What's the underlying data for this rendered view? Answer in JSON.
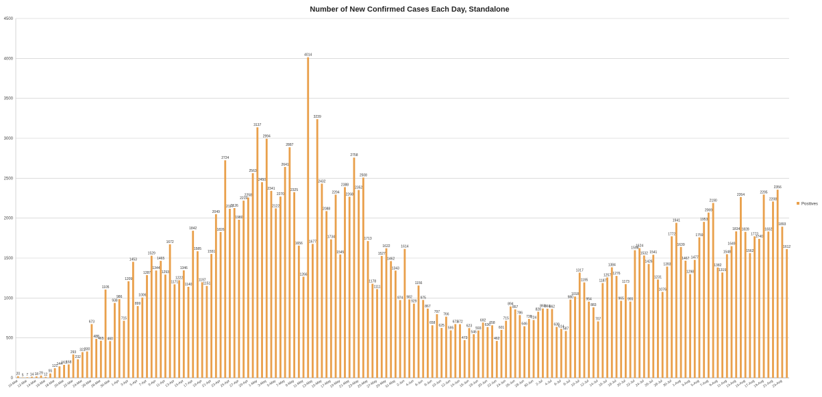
{
  "chart_data": {
    "type": "bar",
    "title": "Number of New Confirmed Cases Each Day, Standalone",
    "xlabel": "",
    "ylabel": "",
    "ylim": [
      0,
      4500
    ],
    "yticks": [
      0,
      500,
      1000,
      1500,
      2000,
      2500,
      3000,
      3500,
      4000,
      4500
    ],
    "grid": true,
    "legend_position": "right",
    "bar_color": "#E9A04C",
    "series": [
      {
        "name": "Positives",
        "values": [
          20,
          5,
          7,
          14,
          18,
          29,
          12,
          55,
          121,
          144,
          163,
          168,
          293,
          232,
          322,
          330,
          673,
          488,
          465,
          1105,
          460,
          938,
          986,
          715,
          1209,
          1453,
          899,
          1006,
          1287,
          1529,
          1344,
          1465,
          1293,
          1672,
          1171,
          1222,
          1346,
          1140,
          1842,
          1585,
          1197,
          1151,
          1551,
          2049,
          1826,
          2724,
          2117,
          2126,
          1980,
          2219,
          2258,
          2563,
          3137,
          2450,
          2994,
          2341,
          2122,
          2270,
          2641,
          2887,
          2325,
          1656,
          1266,
          4014,
          1677,
          3239,
          2432,
          2088,
          1734,
          2294,
          1545,
          2388,
          2268,
          2758,
          2352,
          2508,
          1713,
          1178,
          1111,
          1527,
          1622,
          1462,
          1343,
          974,
          1614,
          982,
          929,
          1156,
          975,
          867,
          658,
          797,
          625,
          766,
          595,
          673,
          672,
          473,
          623,
          546,
          593,
          692,
          636,
          658,
          462,
          601,
          715,
          894,
          857,
          786,
          646,
          738,
          724,
          828,
          868,
          866,
          862,
          638,
          614,
          587,
          980,
          1018,
          1317,
          1195,
          954,
          883,
          707,
          1187,
          1257,
          1384,
          1276,
          965,
          1173,
          955,
          1598,
          1624,
          1532,
          1426,
          1541,
          1231,
          1076,
          1393,
          1772,
          1941,
          1639,
          1467,
          1298,
          1477,
          1759,
          1953,
          2069,
          2190,
          1382,
          1319,
          1548,
          1649,
          1834,
          2264,
          1828,
          1562,
          1772,
          1740,
          2295,
          1832,
          2208,
          2356,
          1893,
          1612
        ]
      }
    ],
    "x_tick_labels": [
      "10-Mar",
      "12-Mar",
      "14-Mar",
      "16-Mar",
      "18-Mar",
      "20-Mar",
      "22-Mar",
      "24-Mar",
      "26-Mar",
      "28-Mar",
      "30-Mar",
      "1-Apr",
      "3-Apr",
      "5-Apr",
      "7-Apr",
      "9-Apr",
      "11-Apr",
      "13-Apr",
      "15-Apr",
      "17-Apr",
      "19-Apr",
      "21-Apr",
      "23-Apr",
      "25-Apr",
      "27-Apr",
      "29-Apr",
      "1-May",
      "3-May",
      "5-May",
      "7-May",
      "9-May",
      "11-May",
      "13-May",
      "15-May",
      "17-May",
      "19-May",
      "21-May",
      "23-May",
      "25-May",
      "27-May",
      "29-May",
      "31-May",
      "2-Jun",
      "4-Jun",
      "6-Jun",
      "8-Jun",
      "10-Jun",
      "12-Jun",
      "14-Jun",
      "16-Jun",
      "18-Jun",
      "20-Jun",
      "22-Jun",
      "24-Jun",
      "26-Jun",
      "28-Jun",
      "30-Jun",
      "2-Jul",
      "4-Jul",
      "6-Jul",
      "8-Jul",
      "10-Jul",
      "12-Jul",
      "14-Jul",
      "16-Jul",
      "18-Jul",
      "20-Jul",
      "22-Jul",
      "24-Jul",
      "26-Jul",
      "28-Jul",
      "30-Jul",
      "1-Aug",
      "3-Aug",
      "5-Aug",
      "7-Aug",
      "9-Aug",
      "11-Aug",
      "13-Aug",
      "15-Aug",
      "17-Aug",
      "19-Aug",
      "21-Aug",
      "23-Aug"
    ]
  }
}
